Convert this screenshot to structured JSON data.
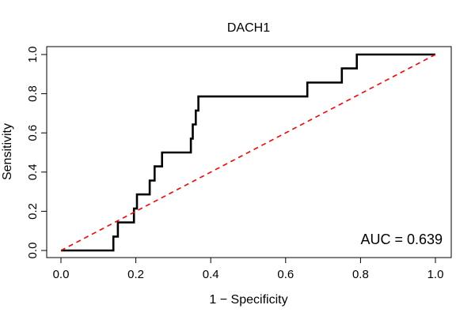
{
  "chart_data": {
    "type": "line",
    "title": "DACH1",
    "xlabel": "1 − Specificity",
    "ylabel": "Sensitivity",
    "xlim": [
      0,
      1
    ],
    "ylim": [
      0,
      1
    ],
    "x_ticks": [
      0.0,
      0.2,
      0.4,
      0.6,
      0.8,
      1.0
    ],
    "y_ticks": [
      0.0,
      0.2,
      0.4,
      0.6,
      0.8,
      1.0
    ],
    "x_tick_labels": [
      "0.0",
      "0.2",
      "0.4",
      "0.6",
      "0.8",
      "1.0"
    ],
    "y_tick_labels": [
      "0.0",
      "0.2",
      "0.4",
      "0.6",
      "0.8",
      "1.0"
    ],
    "grid": false,
    "annotation": "AUC = 0.639",
    "series": [
      {
        "style": "solid",
        "color": "#000000",
        "points": [
          [
            0.0,
            0.0
          ],
          [
            0.14,
            0.0
          ],
          [
            0.14,
            0.071
          ],
          [
            0.152,
            0.071
          ],
          [
            0.152,
            0.143
          ],
          [
            0.195,
            0.143
          ],
          [
            0.195,
            0.214
          ],
          [
            0.203,
            0.214
          ],
          [
            0.203,
            0.286
          ],
          [
            0.237,
            0.286
          ],
          [
            0.237,
            0.357
          ],
          [
            0.25,
            0.357
          ],
          [
            0.25,
            0.429
          ],
          [
            0.27,
            0.429
          ],
          [
            0.27,
            0.5
          ],
          [
            0.347,
            0.5
          ],
          [
            0.347,
            0.571
          ],
          [
            0.352,
            0.571
          ],
          [
            0.352,
            0.643
          ],
          [
            0.36,
            0.643
          ],
          [
            0.36,
            0.714
          ],
          [
            0.367,
            0.714
          ],
          [
            0.367,
            0.786
          ],
          [
            0.658,
            0.786
          ],
          [
            0.658,
            0.857
          ],
          [
            0.75,
            0.857
          ],
          [
            0.75,
            0.929
          ],
          [
            0.79,
            0.929
          ],
          [
            0.79,
            1.0
          ],
          [
            1.0,
            1.0
          ]
        ]
      },
      {
        "style": "dashed",
        "color": "#ff0000",
        "points": [
          [
            0.0,
            0.0
          ],
          [
            1.0,
            1.0
          ]
        ]
      }
    ]
  }
}
